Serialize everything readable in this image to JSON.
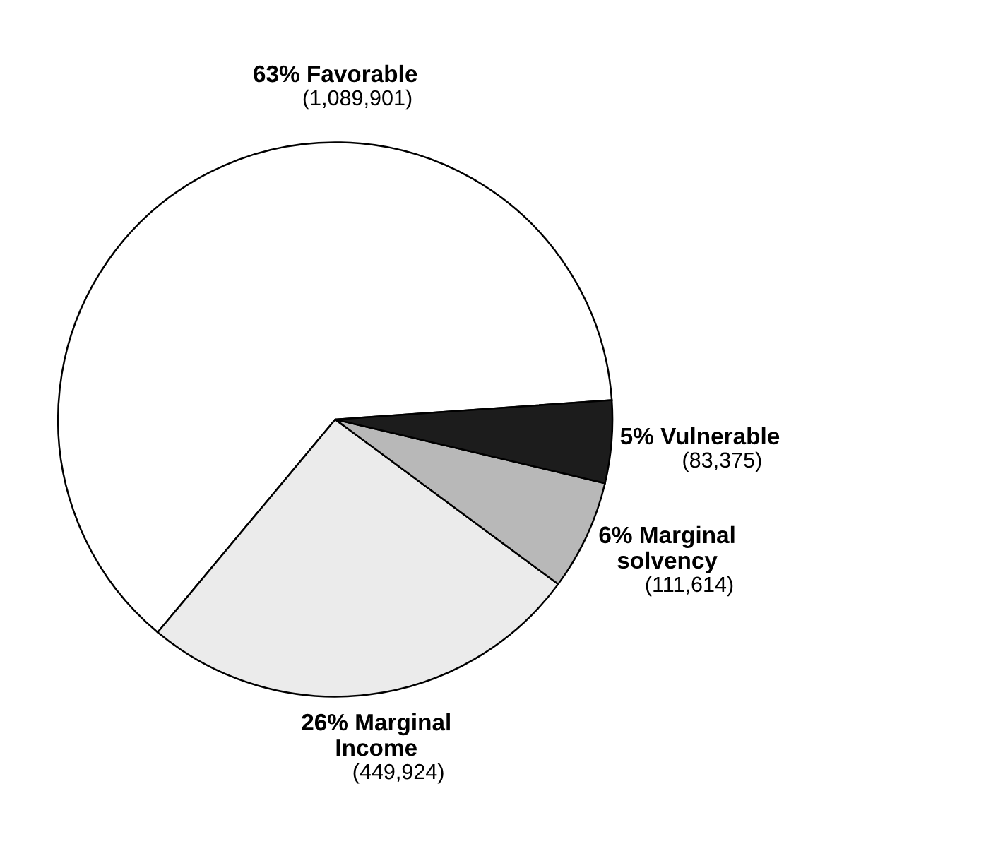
{
  "chart_data": {
    "type": "pie",
    "categories": [
      "63% Favorable",
      "26% Marginal Income",
      "6% Marginal solvency",
      "5% Vulnerable"
    ],
    "values": [
      1089901,
      449924,
      111614,
      83375
    ],
    "value_labels": [
      "(1,089,901)",
      "(449,924)",
      "(111,614)",
      "(83,375)"
    ],
    "colors": [
      "#ffffff",
      "#ebebeb",
      "#b8b8b8",
      "#1c1c1c"
    ]
  }
}
